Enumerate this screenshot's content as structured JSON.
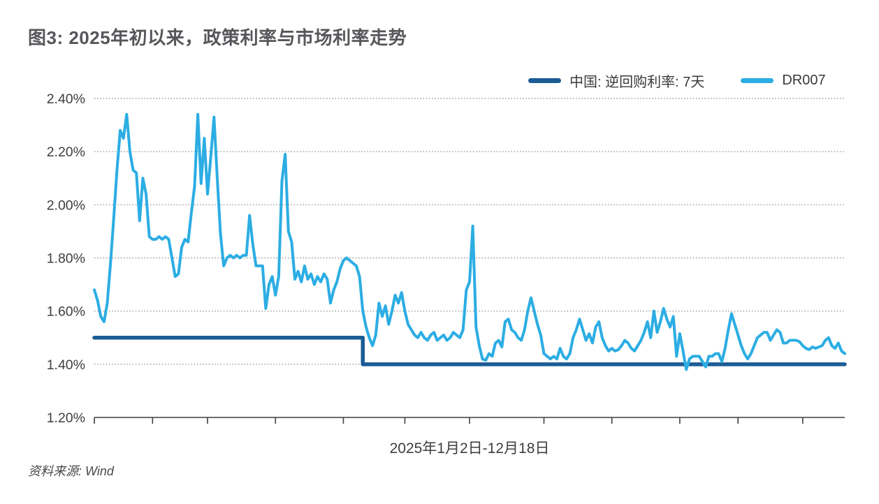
{
  "title": "图3: 2025年初以来，政策利率与市场利率走势",
  "source": "资料来源: Wind",
  "legend": {
    "items": [
      {
        "label": "中国: 逆回购利率: 7天",
        "color": "#1b5c95"
      },
      {
        "label": "DR007",
        "color": "#2cade3"
      }
    ]
  },
  "colors": {
    "policy_line": "#1b5c95",
    "dr007_line": "#2cade3",
    "grid": "#8c8c8c",
    "axis": "#3f3f3f",
    "text": "#3e3e40",
    "title_text": "#56575b"
  },
  "chart_data": {
    "type": "line",
    "title": "图3: 2025年初以来，政策利率与市场利率走势",
    "xlabel": "2025年1月2日-12月18日",
    "ylabel": "",
    "ylim": [
      1.2,
      2.4
    ],
    "grid": "horizontal-dotted",
    "legend_position": "top-right",
    "y_axis": {
      "ticks": [
        {
          "label": "2.40%",
          "value": 2.4
        },
        {
          "label": "2.20%",
          "value": 2.2
        },
        {
          "label": "2.00%",
          "value": 2.0
        },
        {
          "label": "1.80%",
          "value": 1.8
        },
        {
          "label": "1.60%",
          "value": 1.6
        },
        {
          "label": "1.40%",
          "value": 1.4
        },
        {
          "label": "1.20%",
          "value": 1.2
        }
      ]
    },
    "x_axis": {
      "label": "2025年1月2日-12月18日",
      "month_tick_indices": [
        0,
        18,
        35,
        56,
        77,
        96,
        116,
        139,
        160,
        181,
        199,
        219
      ]
    },
    "series": [
      {
        "name": "中国: 逆回购利率: 7天",
        "type": "step",
        "color": "#1b5c95",
        "start_value": 1.5,
        "end_value": 1.4,
        "step_index": 83
      },
      {
        "name": "DR007",
        "type": "line",
        "color": "#2cade3",
        "values": [
          1.68,
          1.64,
          1.58,
          1.56,
          1.63,
          1.78,
          1.95,
          2.13,
          2.28,
          2.25,
          2.34,
          2.2,
          2.13,
          2.12,
          1.94,
          2.1,
          2.04,
          1.88,
          1.87,
          1.87,
          1.88,
          1.87,
          1.88,
          1.87,
          1.8,
          1.73,
          1.74,
          1.84,
          1.87,
          1.86,
          1.97,
          2.07,
          2.34,
          2.08,
          2.25,
          2.04,
          2.18,
          2.33,
          2.1,
          1.89,
          1.77,
          1.8,
          1.81,
          1.8,
          1.81,
          1.8,
          1.81,
          1.81,
          1.96,
          1.85,
          1.77,
          1.77,
          1.77,
          1.61,
          1.7,
          1.73,
          1.66,
          1.73,
          2.09,
          2.19,
          1.9,
          1.86,
          1.72,
          1.75,
          1.71,
          1.77,
          1.72,
          1.74,
          1.7,
          1.73,
          1.71,
          1.74,
          1.72,
          1.63,
          1.68,
          1.71,
          1.76,
          1.79,
          1.8,
          1.79,
          1.78,
          1.77,
          1.73,
          1.6,
          1.54,
          1.5,
          1.47,
          1.51,
          1.63,
          1.58,
          1.62,
          1.55,
          1.6,
          1.66,
          1.63,
          1.67,
          1.6,
          1.55,
          1.53,
          1.51,
          1.5,
          1.52,
          1.5,
          1.49,
          1.51,
          1.52,
          1.49,
          1.5,
          1.51,
          1.49,
          1.5,
          1.52,
          1.51,
          1.5,
          1.53,
          1.68,
          1.71,
          1.92,
          1.54,
          1.47,
          1.42,
          1.415,
          1.44,
          1.43,
          1.48,
          1.49,
          1.465,
          1.56,
          1.57,
          1.53,
          1.52,
          1.5,
          1.49,
          1.53,
          1.6,
          1.65,
          1.6,
          1.55,
          1.51,
          1.44,
          1.43,
          1.42,
          1.43,
          1.42,
          1.46,
          1.43,
          1.42,
          1.44,
          1.5,
          1.53,
          1.57,
          1.53,
          1.49,
          1.515,
          1.48,
          1.54,
          1.56,
          1.5,
          1.47,
          1.45,
          1.46,
          1.45,
          1.455,
          1.47,
          1.49,
          1.48,
          1.46,
          1.45,
          1.47,
          1.49,
          1.52,
          1.56,
          1.5,
          1.6,
          1.52,
          1.56,
          1.61,
          1.57,
          1.54,
          1.58,
          1.43,
          1.515,
          1.45,
          1.38,
          1.42,
          1.43,
          1.43,
          1.43,
          1.41,
          1.39,
          1.43,
          1.43,
          1.44,
          1.44,
          1.41,
          1.46,
          1.53,
          1.59,
          1.55,
          1.51,
          1.47,
          1.44,
          1.42,
          1.44,
          1.47,
          1.5,
          1.51,
          1.52,
          1.52,
          1.49,
          1.51,
          1.53,
          1.52,
          1.48,
          1.48,
          1.49,
          1.49,
          1.49,
          1.485,
          1.47,
          1.46,
          1.455,
          1.465,
          1.46,
          1.465,
          1.47,
          1.49,
          1.5,
          1.47,
          1.46,
          1.48,
          1.45,
          1.44
        ]
      }
    ]
  }
}
